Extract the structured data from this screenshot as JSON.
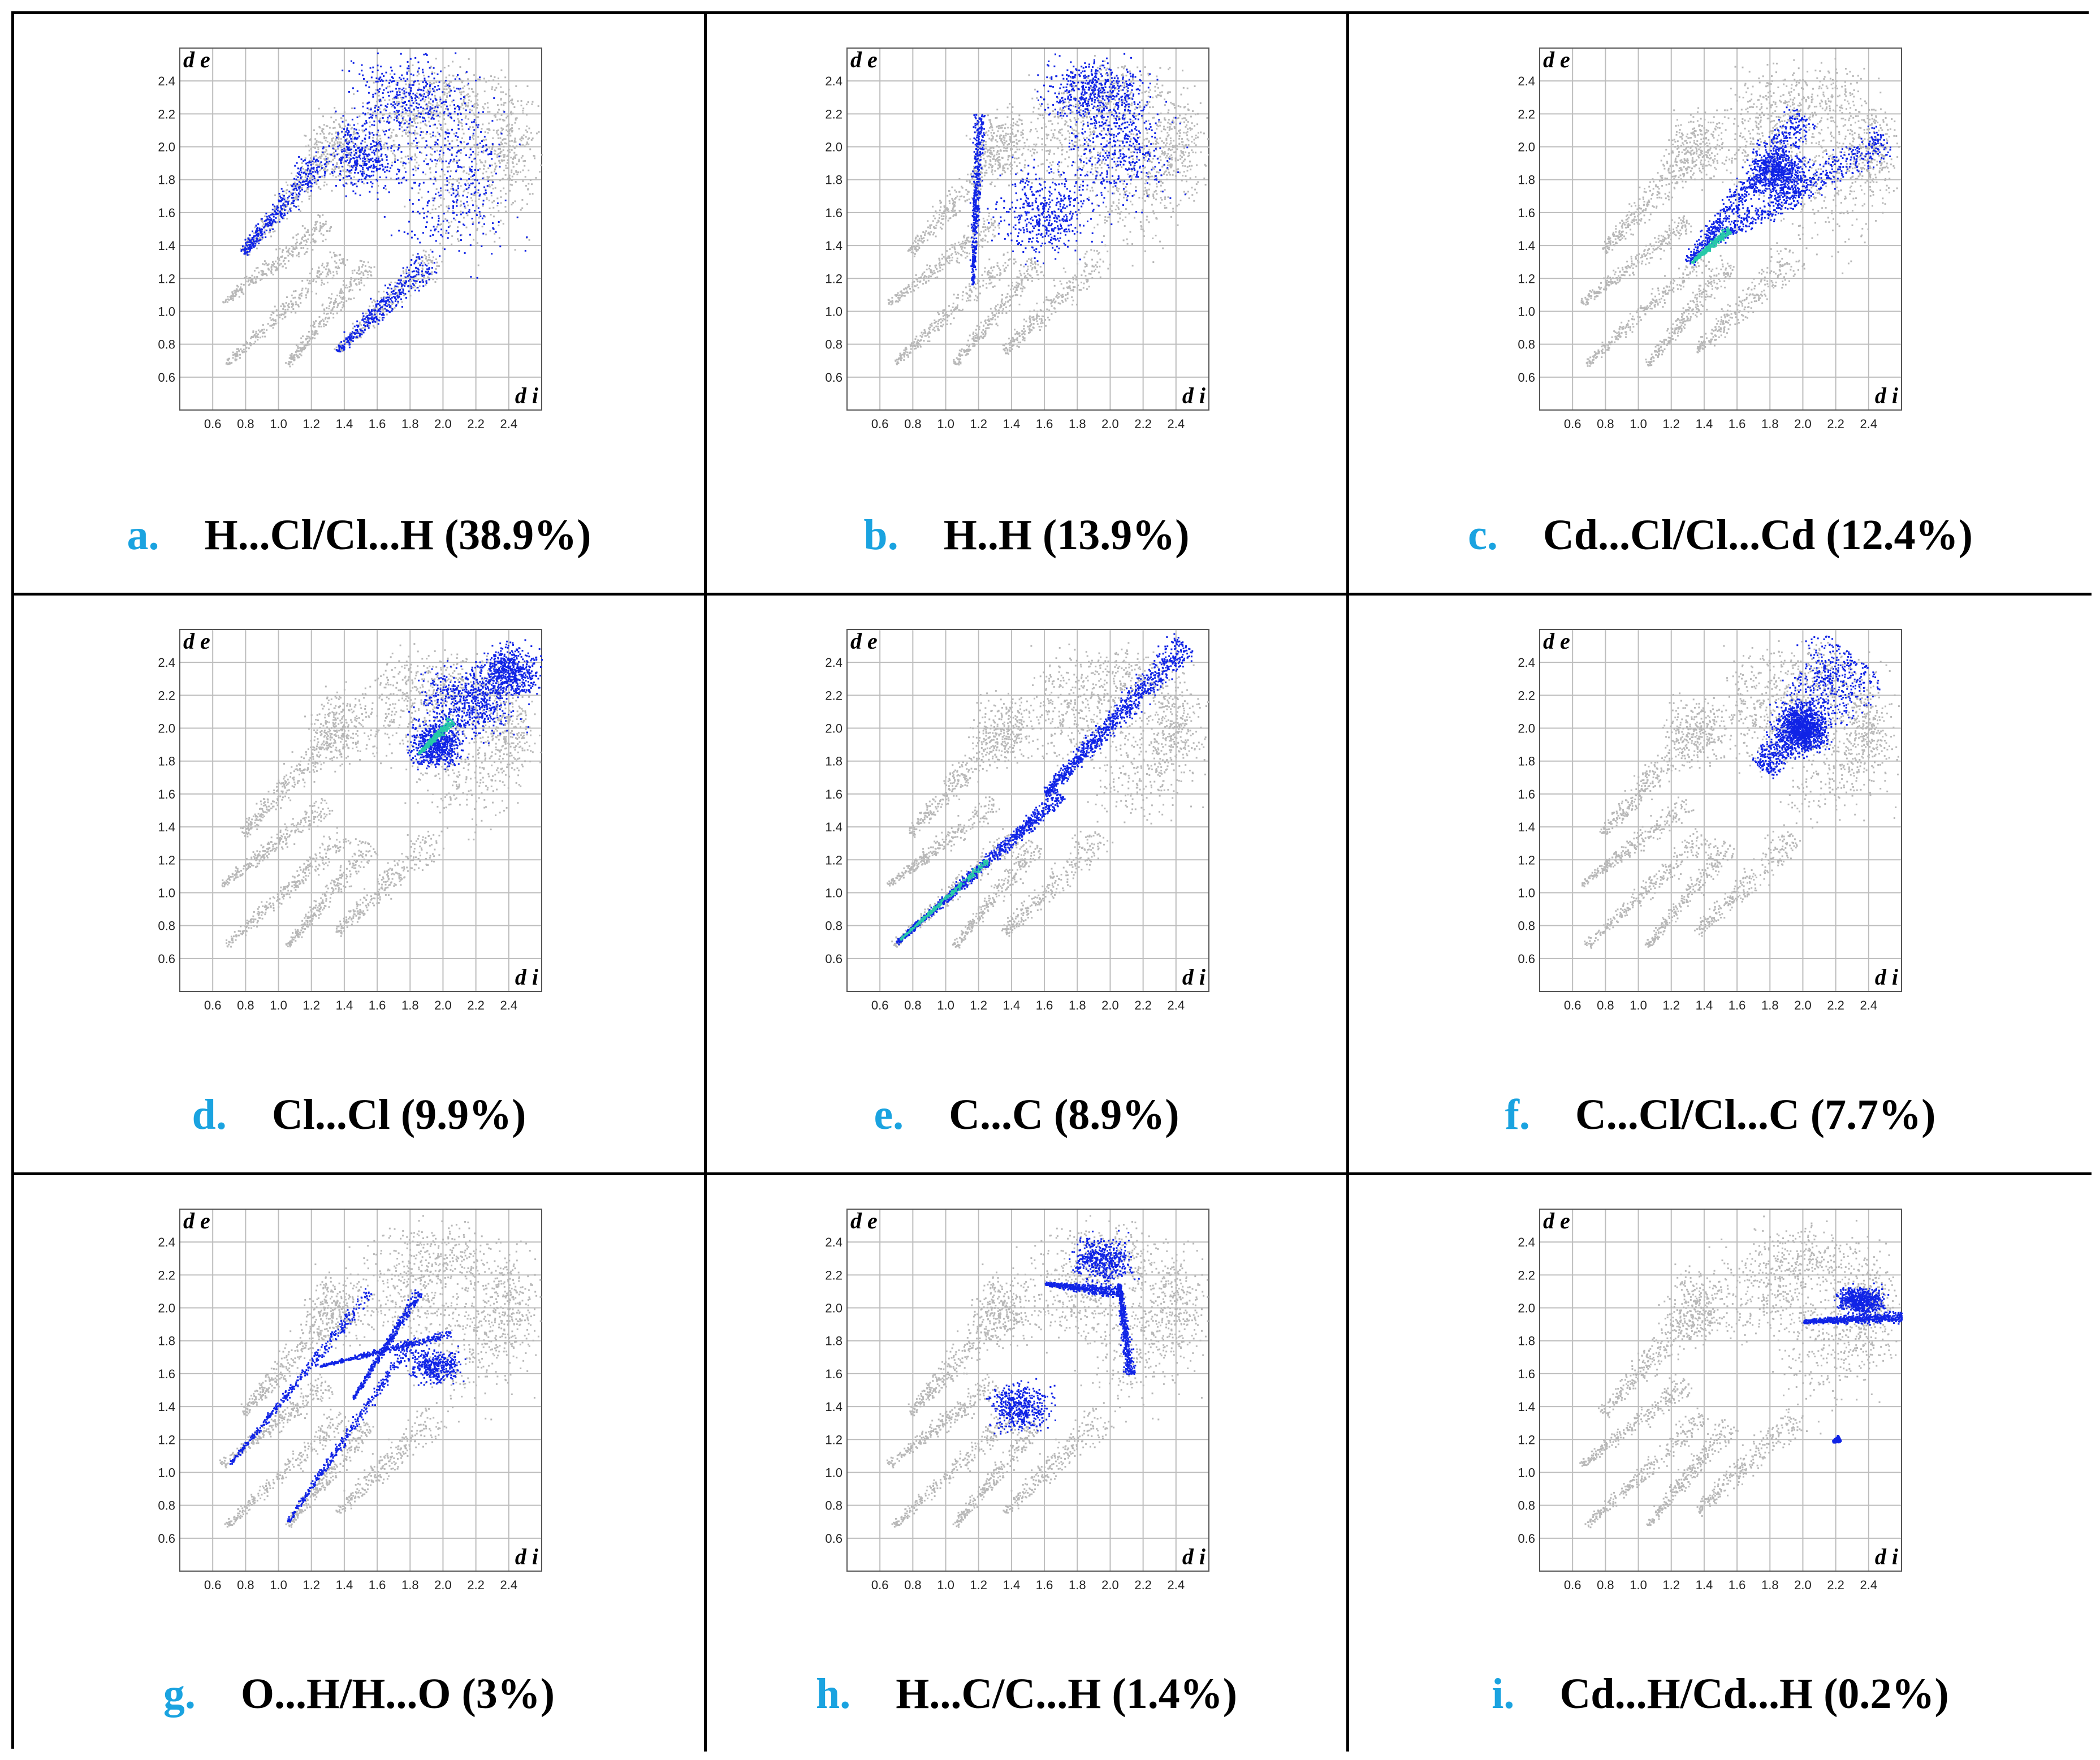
{
  "figure": {
    "axis_label_x": "d i",
    "axis_label_y": "d e",
    "colors": {
      "background_points": "#b8b8b8",
      "highlight": "#1024e6",
      "dense": "#27c9a8",
      "grid": "#bdbdbd"
    }
  },
  "chart_data": [
    {
      "type": "scatter",
      "letter": "a.",
      "label": "H...Cl/Cl...H (38.9%)",
      "xlabel": "d i",
      "ylabel": "d e",
      "xlim": [
        0.4,
        2.6
      ],
      "ylim": [
        0.4,
        2.6
      ],
      "x_ticks": [
        "0.6",
        "0.8",
        "1.0",
        "1.2",
        "1.4",
        "1.6",
        "1.8",
        "2.0",
        "2.2",
        "2.4"
      ],
      "y_ticks": [
        "0.6",
        "0.8",
        "1.0",
        "1.2",
        "1.4",
        "1.6",
        "1.8",
        "2.0",
        "2.2",
        "2.4"
      ],
      "highlight": [
        {
          "kind": "spike",
          "x0": 0.78,
          "y0": 1.36,
          "x1": 1.25,
          "y1": 1.92,
          "w": 0.1
        },
        {
          "kind": "spike",
          "x0": 1.35,
          "y0": 0.76,
          "x1": 1.9,
          "y1": 1.3,
          "w": 0.1
        },
        {
          "kind": "blob",
          "cx": 1.5,
          "cy": 1.95,
          "rx": 0.3,
          "ry": 0.3
        },
        {
          "kind": "blob",
          "cx": 2.05,
          "cy": 1.8,
          "rx": 0.5,
          "ry": 0.75
        },
        {
          "kind": "blob",
          "cx": 1.8,
          "cy": 2.3,
          "rx": 0.55,
          "ry": 0.35
        }
      ],
      "dense": []
    },
    {
      "type": "scatter",
      "letter": "b.",
      "label": "H..H (13.9%)",
      "xlabel": "d i",
      "ylabel": "d e",
      "xlim": [
        0.4,
        2.6
      ],
      "ylim": [
        0.4,
        2.6
      ],
      "x_ticks": [
        "0.6",
        "0.8",
        "1.0",
        "1.2",
        "1.4",
        "1.6",
        "1.8",
        "2.0",
        "2.2",
        "2.4"
      ],
      "y_ticks": [
        "0.6",
        "0.8",
        "1.0",
        "1.2",
        "1.4",
        "1.6",
        "1.8",
        "2.0",
        "2.2",
        "2.4"
      ],
      "highlight": [
        {
          "kind": "spike",
          "x0": 1.16,
          "y0": 1.16,
          "x1": 1.2,
          "y1": 2.2,
          "w": 0.04
        },
        {
          "kind": "blob",
          "cx": 1.6,
          "cy": 1.6,
          "rx": 0.38,
          "ry": 0.38
        },
        {
          "kind": "blob",
          "cx": 2.05,
          "cy": 2.0,
          "rx": 0.45,
          "ry": 0.5
        },
        {
          "kind": "blob",
          "cx": 1.9,
          "cy": 2.35,
          "rx": 0.45,
          "ry": 0.25
        }
      ],
      "dense": []
    },
    {
      "type": "scatter",
      "letter": "c.",
      "label": "Cd...Cl/Cl...Cd (12.4%)",
      "xlabel": "d i",
      "ylabel": "d e",
      "xlim": [
        0.4,
        2.6
      ],
      "ylim": [
        0.4,
        2.6
      ],
      "x_ticks": [
        "0.6",
        "0.8",
        "1.0",
        "1.2",
        "1.4",
        "1.6",
        "1.8",
        "2.0",
        "2.2",
        "2.4"
      ],
      "y_ticks": [
        "0.6",
        "0.8",
        "1.0",
        "1.2",
        "1.4",
        "1.6",
        "1.8",
        "2.0",
        "2.2",
        "2.4"
      ],
      "highlight": [
        {
          "kind": "spike",
          "x0": 1.3,
          "y0": 1.3,
          "x1": 2.0,
          "y1": 2.2,
          "w": 0.12
        },
        {
          "kind": "spike",
          "x0": 1.4,
          "y0": 1.4,
          "x1": 2.5,
          "y1": 2.05,
          "w": 0.12
        },
        {
          "kind": "blob",
          "cx": 1.85,
          "cy": 1.85,
          "rx": 0.25,
          "ry": 0.2
        }
      ],
      "dense": [
        {
          "kind": "spike",
          "x0": 1.32,
          "y0": 1.3,
          "x1": 1.55,
          "y1": 1.5,
          "w": 0.03
        }
      ]
    },
    {
      "type": "scatter",
      "letter": "d.",
      "label": "Cl...Cl (9.9%)",
      "xlabel": "d i",
      "ylabel": "d e",
      "xlim": [
        0.4,
        2.6
      ],
      "ylim": [
        0.4,
        2.6
      ],
      "x_ticks": [
        "0.6",
        "0.8",
        "1.0",
        "1.2",
        "1.4",
        "1.6",
        "1.8",
        "2.0",
        "2.2",
        "2.4"
      ],
      "y_ticks": [
        "0.6",
        "0.8",
        "1.0",
        "1.2",
        "1.4",
        "1.6",
        "1.8",
        "2.0",
        "2.2",
        "2.4"
      ],
      "highlight": [
        {
          "kind": "blob",
          "cx": 2.15,
          "cy": 2.15,
          "rx": 0.4,
          "ry": 0.3
        },
        {
          "kind": "blob",
          "cx": 1.95,
          "cy": 1.9,
          "rx": 0.22,
          "ry": 0.18
        },
        {
          "kind": "blob",
          "cx": 2.4,
          "cy": 2.35,
          "rx": 0.25,
          "ry": 0.22
        }
      ],
      "dense": [
        {
          "kind": "spike",
          "x0": 1.85,
          "y0": 1.85,
          "x1": 2.05,
          "y1": 2.05,
          "w": 0.03
        }
      ]
    },
    {
      "type": "scatter",
      "letter": "e.",
      "label": "C...C (8.9%)",
      "xlabel": "d i",
      "ylabel": "d e",
      "xlim": [
        0.4,
        2.6
      ],
      "ylim": [
        0.4,
        2.6
      ],
      "x_ticks": [
        "0.6",
        "0.8",
        "1.0",
        "1.2",
        "1.4",
        "1.6",
        "1.8",
        "2.0",
        "2.2",
        "2.4"
      ],
      "y_ticks": [
        "0.6",
        "0.8",
        "1.0",
        "1.2",
        "1.4",
        "1.6",
        "1.8",
        "2.0",
        "2.2",
        "2.4"
      ],
      "highlight": [
        {
          "kind": "spike",
          "x0": 0.7,
          "y0": 0.7,
          "x1": 1.7,
          "y1": 1.6,
          "w": 0.05
        },
        {
          "kind": "spike",
          "x0": 1.6,
          "y0": 1.6,
          "x1": 2.45,
          "y1": 2.52,
          "w": 0.1
        }
      ],
      "dense": [
        {
          "kind": "spike",
          "x0": 0.72,
          "y0": 0.72,
          "x1": 1.25,
          "y1": 1.2,
          "w": 0.02
        }
      ]
    },
    {
      "type": "scatter",
      "letter": "f.",
      "label": "C...Cl/Cl...C (7.7%)",
      "xlabel": "d i",
      "ylabel": "d e",
      "xlim": [
        0.4,
        2.6
      ],
      "ylim": [
        0.4,
        2.6
      ],
      "x_ticks": [
        "0.6",
        "0.8",
        "1.0",
        "1.2",
        "1.4",
        "1.6",
        "1.8",
        "2.0",
        "2.2",
        "2.4"
      ],
      "y_ticks": [
        "0.6",
        "0.8",
        "1.0",
        "1.2",
        "1.4",
        "1.6",
        "1.8",
        "2.0",
        "2.2",
        "2.4"
      ],
      "highlight": [
        {
          "kind": "spike",
          "x0": 1.75,
          "y0": 1.75,
          "x1": 2.3,
          "y1": 2.45,
          "w": 0.3
        },
        {
          "kind": "blob",
          "cx": 2.0,
          "cy": 2.0,
          "rx": 0.2,
          "ry": 0.2
        }
      ],
      "dense": []
    },
    {
      "type": "scatter",
      "letter": "g.",
      "label": "O...H/H...O (3%)",
      "xlabel": "d i",
      "ylabel": "d e",
      "xlim": [
        0.4,
        2.6
      ],
      "ylim": [
        0.4,
        2.6
      ],
      "x_ticks": [
        "0.6",
        "0.8",
        "1.0",
        "1.2",
        "1.4",
        "1.6",
        "1.8",
        "2.0",
        "2.2",
        "2.4"
      ],
      "y_ticks": [
        "0.6",
        "0.8",
        "1.0",
        "1.2",
        "1.4",
        "1.6",
        "1.8",
        "2.0",
        "2.2",
        "2.4"
      ],
      "highlight": [
        {
          "kind": "spike",
          "x0": 0.7,
          "y0": 1.05,
          "x1": 1.55,
          "y1": 2.1,
          "w": 0.04
        },
        {
          "kind": "spike",
          "x0": 1.05,
          "y0": 0.7,
          "x1": 1.8,
          "y1": 1.8,
          "w": 0.04
        },
        {
          "kind": "spike",
          "x0": 1.25,
          "y0": 1.65,
          "x1": 2.05,
          "y1": 1.85,
          "w": 0.03
        },
        {
          "kind": "spike",
          "x0": 1.45,
          "y0": 1.45,
          "x1": 1.85,
          "y1": 2.1,
          "w": 0.03
        },
        {
          "kind": "blob",
          "cx": 1.95,
          "cy": 1.65,
          "rx": 0.22,
          "ry": 0.15
        }
      ],
      "dense": []
    },
    {
      "type": "scatter",
      "letter": "h.",
      "label": "H...C/C...H (1.4%)",
      "xlabel": "d i",
      "ylabel": "d e",
      "xlim": [
        0.4,
        2.6
      ],
      "ylim": [
        0.4,
        2.6
      ],
      "x_ticks": [
        "0.6",
        "0.8",
        "1.0",
        "1.2",
        "1.4",
        "1.6",
        "1.8",
        "2.0",
        "2.2",
        "2.4"
      ],
      "y_ticks": [
        "0.6",
        "0.8",
        "1.0",
        "1.2",
        "1.4",
        "1.6",
        "1.8",
        "2.0",
        "2.2",
        "2.4"
      ],
      "highlight": [
        {
          "kind": "spike",
          "x0": 1.6,
          "y0": 2.15,
          "x1": 2.05,
          "y1": 2.1,
          "w": 0.04
        },
        {
          "kind": "spike",
          "x0": 2.05,
          "y0": 2.15,
          "x1": 2.12,
          "y1": 1.6,
          "w": 0.04
        },
        {
          "kind": "blob",
          "cx": 1.45,
          "cy": 1.4,
          "rx": 0.25,
          "ry": 0.2
        },
        {
          "kind": "blob",
          "cx": 1.95,
          "cy": 2.3,
          "rx": 0.25,
          "ry": 0.2
        }
      ],
      "dense": []
    },
    {
      "type": "scatter",
      "letter": "i.",
      "label": "Cd...H/Cd...H (0.2%)",
      "xlabel": "d i",
      "ylabel": "d e",
      "xlim": [
        0.4,
        2.6
      ],
      "ylim": [
        0.4,
        2.6
      ],
      "x_ticks": [
        "0.6",
        "0.8",
        "1.0",
        "1.2",
        "1.4",
        "1.6",
        "1.8",
        "2.0",
        "2.2",
        "2.4"
      ],
      "y_ticks": [
        "0.6",
        "0.8",
        "1.0",
        "1.2",
        "1.4",
        "1.6",
        "1.8",
        "2.0",
        "2.2",
        "2.4"
      ],
      "highlight": [
        {
          "kind": "spike",
          "x0": 2.0,
          "y0": 1.92,
          "x1": 2.6,
          "y1": 1.95,
          "w": 0.04
        },
        {
          "kind": "spike",
          "x0": 2.18,
          "y0": 1.19,
          "x1": 2.22,
          "y1": 1.21,
          "w": 0.02
        },
        {
          "kind": "blob",
          "cx": 2.35,
          "cy": 2.05,
          "rx": 0.2,
          "ry": 0.12
        }
      ],
      "dense": []
    }
  ]
}
